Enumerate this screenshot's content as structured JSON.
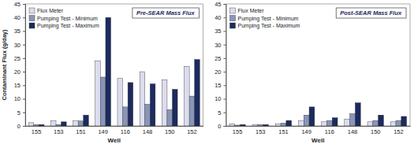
{
  "chart_data": [
    {
      "type": "bar",
      "title": "Pre-SEAR Mass Flux",
      "x_label": "Well",
      "y_label": "Contaminant Flux (g/day)",
      "categories": [
        "155",
        "153",
        "151",
        "149",
        "116",
        "148",
        "150",
        "152"
      ],
      "series": [
        {
          "name": "Flux Meter",
          "color": "#dcdcf0",
          "values": [
            1.2,
            2,
            2,
            24,
            17.5,
            20,
            17,
            22
          ]
        },
        {
          "name": "Pumping Test - Minimum",
          "color": "#8a96b8",
          "values": [
            0.5,
            0.5,
            1.8,
            18,
            7,
            8,
            6,
            11
          ]
        },
        {
          "name": "Pumping Test - Maximum",
          "color": "#1c2a5e",
          "values": [
            0.5,
            1.5,
            4,
            40,
            16,
            15.5,
            13.5,
            24.5
          ]
        }
      ],
      "ylim": [
        0,
        45
      ],
      "yticks": [
        0,
        5,
        10,
        15,
        20,
        25,
        30,
        35,
        40,
        45
      ],
      "grid": false,
      "legend": "upper left"
    },
    {
      "type": "bar",
      "title": "Post-SEAR Mass Flux",
      "x_label": "Well",
      "categories": [
        "155",
        "153",
        "151",
        "149",
        "116",
        "148",
        "150",
        "152"
      ],
      "series": [
        {
          "name": "Flux Meter",
          "color": "#dcdcf0",
          "values": [
            0.8,
            0.5,
            0.8,
            2,
            1.5,
            2.5,
            1.5,
            1.5
          ]
        },
        {
          "name": "Pumping Test - Minimum",
          "color": "#8a96b8",
          "values": [
            0.3,
            0.5,
            1,
            4,
            2,
            4.5,
            2,
            2
          ]
        },
        {
          "name": "Pumping Test - Maximum",
          "color": "#1c2a5e",
          "values": [
            0.5,
            0.5,
            2,
            7,
            3,
            8.5,
            4,
            3.5
          ]
        }
      ],
      "ylim": [
        0,
        45
      ],
      "yticks": [
        0,
        5,
        10,
        15,
        20,
        25,
        30,
        35,
        40,
        45
      ],
      "grid": false,
      "legend": "upper left"
    }
  ]
}
